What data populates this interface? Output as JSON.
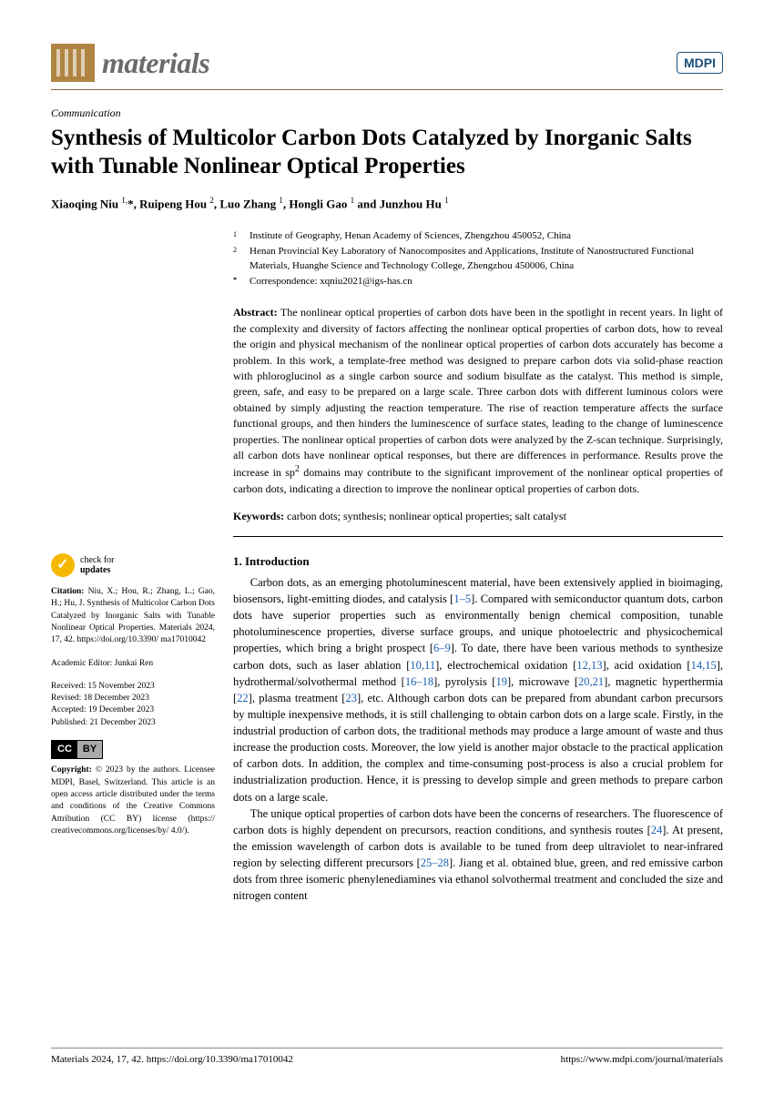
{
  "journal": {
    "name": "materials",
    "publisher_badge": "MDPI"
  },
  "article_type": "Communication",
  "title": "Synthesis of Multicolor Carbon Dots Catalyzed by Inorganic Salts with Tunable Nonlinear Optical Properties",
  "authors_html": "Xiaoqing Niu <sup>1,</sup>*, Ruipeng Hou <sup>2</sup>, Luo Zhang <sup>1</sup>, Hongli Gao <sup>1</sup> and Junzhou Hu <sup>1</sup>",
  "affiliations": [
    {
      "num": "1",
      "text": "Institute of Geography, Henan Academy of Sciences, Zhengzhou 450052, China"
    },
    {
      "num": "2",
      "text": "Henan Provincial Key Laboratory of Nanocomposites and Applications, Institute of Nanostructured Functional Materials, Huanghe Science and Technology College, Zhengzhou 450006, China"
    }
  ],
  "correspondence": {
    "symbol": "*",
    "text": "Correspondence: xqniu2021@igs-has.cn"
  },
  "abstract": {
    "heading": "Abstract:",
    "text": "The nonlinear optical properties of carbon dots have been in the spotlight in recent years. In light of the complexity and diversity of factors affecting the nonlinear optical properties of carbon dots, how to reveal the origin and physical mechanism of the nonlinear optical properties of carbon dots accurately has become a problem. In this work, a template-free method was designed to prepare carbon dots via solid-phase reaction with phloroglucinol as a single carbon source and sodium bisulfate as the catalyst. This method is simple, green, safe, and easy to be prepared on a large scale. Three carbon dots with different luminous colors were obtained by simply adjusting the reaction temperature. The rise of reaction temperature affects the surface functional groups, and then hinders the luminescence of surface states, leading to the change of luminescence properties. The nonlinear optical properties of carbon dots were analyzed by the Z-scan technique. Surprisingly, all carbon dots have nonlinear optical responses, but there are differences in performance. Results prove the increase in sp² domains may contribute to the significant improvement of the nonlinear optical properties of carbon dots, indicating a direction to improve the nonlinear optical properties of carbon dots."
  },
  "keywords": {
    "heading": "Keywords:",
    "text": "carbon dots; synthesis; nonlinear optical properties; salt catalyst"
  },
  "sidebar": {
    "check_updates": {
      "line1": "check for",
      "line2": "updates"
    },
    "citation": {
      "label": "Citation:",
      "text": "Niu, X.; Hou, R.; Zhang, L.; Gao, H.; Hu, J. Synthesis of Multicolor Carbon Dots Catalyzed by Inorganic Salts with Tunable Nonlinear Optical Properties. Materials 2024, 17, 42. https://doi.org/10.3390/ ma17010042"
    },
    "editor": {
      "label": "Academic Editor:",
      "name": "Junkai Ren"
    },
    "dates": {
      "received": "Received: 15 November 2023",
      "revised": "Revised: 18 December 2023",
      "accepted": "Accepted: 19 December 2023",
      "published": "Published: 21 December 2023"
    },
    "copyright": {
      "label": "Copyright:",
      "text": "© 2023 by the authors. Licensee MDPI, Basel, Switzerland. This article is an open access article distributed under the terms and conditions of the Creative Commons Attribution (CC BY) license (https:// creativecommons.org/licenses/by/ 4.0/)."
    }
  },
  "introduction": {
    "heading": "1. Introduction",
    "para1": "Carbon dots, as an emerging photoluminescent material, have been extensively applied in bioimaging, biosensors, light-emitting diodes, and catalysis [1–5]. Compared with semiconductor quantum dots, carbon dots have superior properties such as environmentally benign chemical composition, tunable photoluminescence properties, diverse surface groups, and unique photoelectric and physicochemical properties, which bring a bright prospect [6–9]. To date, there have been various methods to synthesize carbon dots, such as laser ablation [10,11], electrochemical oxidation [12,13], acid oxidation [14,15], hydrothermal/solvothermal method [16–18], pyrolysis [19], microwave [20,21], magnetic hyperthermia [22], plasma treatment [23], etc. Although carbon dots can be prepared from abundant carbon precursors by multiple inexpensive methods, it is still challenging to obtain carbon dots on a large scale. Firstly, in the industrial production of carbon dots, the traditional methods may produce a large amount of waste and thus increase the production costs. Moreover, the low yield is another major obstacle to the practical application of carbon dots. In addition, the complex and time-consuming post-process is also a crucial problem for industrialization production. Hence, it is pressing to develop simple and green methods to prepare carbon dots on a large scale.",
    "para2": "The unique optical properties of carbon dots have been the concerns of researchers. The fluorescence of carbon dots is highly dependent on precursors, reaction conditions, and synthesis routes [24]. At present, the emission wavelength of carbon dots is available to be tuned from deep ultraviolet to near-infrared region by selecting different precursors [25–28]. Jiang et al. obtained blue, green, and red emissive carbon dots from three isomeric phenylenediamines via ethanol solvothermal treatment and concluded the size and nitrogen content"
  },
  "footer": {
    "left": "Materials 2024, 17, 42. https://doi.org/10.3390/ma17010042",
    "right": "https://www.mdpi.com/journal/materials"
  },
  "colors": {
    "accent_brown": "#8b6a3e",
    "logo_bg": "#b08544",
    "mdpi_blue": "#1a4e7a",
    "ref_blue": "#1a5fb4",
    "check_yellow": "#f5b800"
  }
}
